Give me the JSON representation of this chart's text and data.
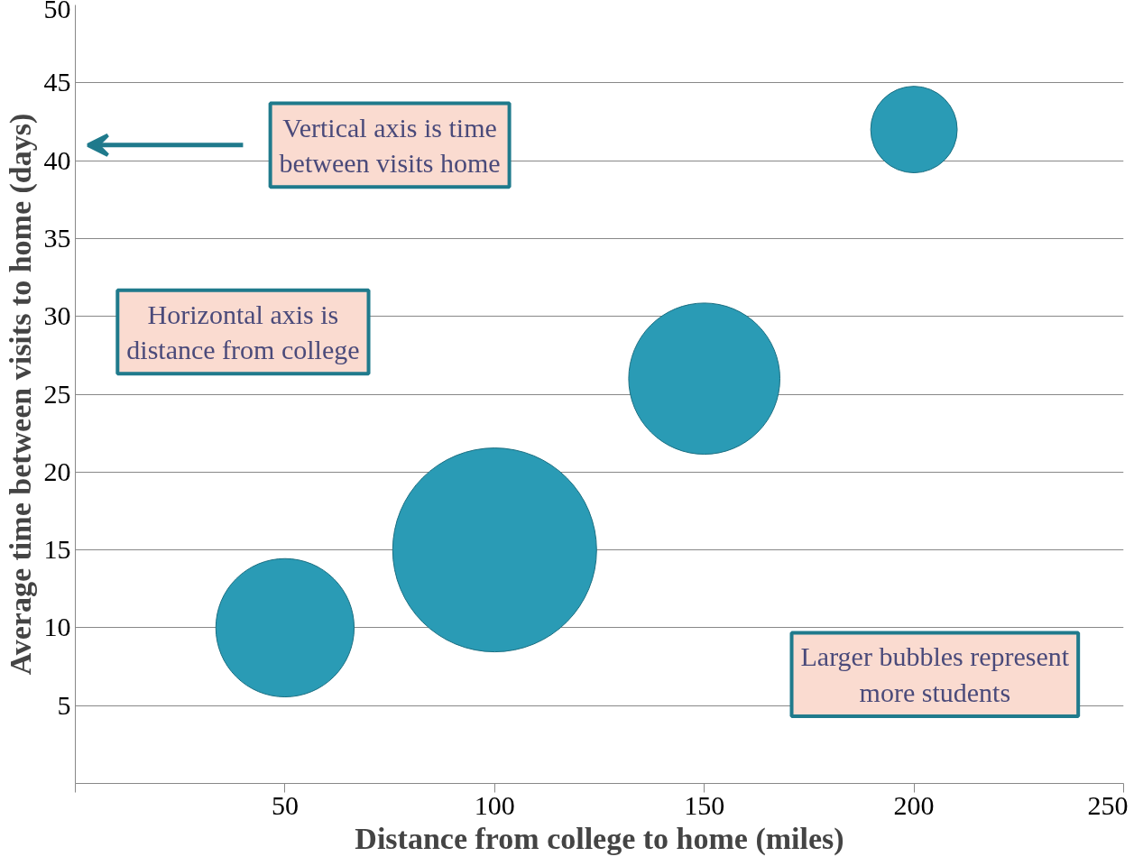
{
  "chart_data": {
    "type": "bubble",
    "xlabel": "Distance from college to home (miles)",
    "ylabel": "Average time between visits to home (days)",
    "x": [
      50,
      100,
      150,
      200
    ],
    "series": [
      {
        "color": "#2a9bb5",
        "values": [
          10,
          15,
          26,
          42
        ],
        "sizes": [
          0.46,
          1,
          0.55,
          0.18
        ]
      }
    ],
    "xlim": [
      0,
      250
    ],
    "xticks": [
      {
        "value": 0,
        "label": null
      },
      50,
      100,
      150,
      200,
      250
    ],
    "ylim": [
      0,
      50
    ],
    "yticks": [
      {
        "value": 0,
        "label": null
      },
      5,
      10,
      15,
      20,
      25,
      30,
      35,
      40,
      45,
      50
    ],
    "grid": "y",
    "annotations": [
      "Vertical axis is time between visits home",
      "Larger bubbles represent more students",
      "Horizontal axis is distance from college"
    ]
  }
}
